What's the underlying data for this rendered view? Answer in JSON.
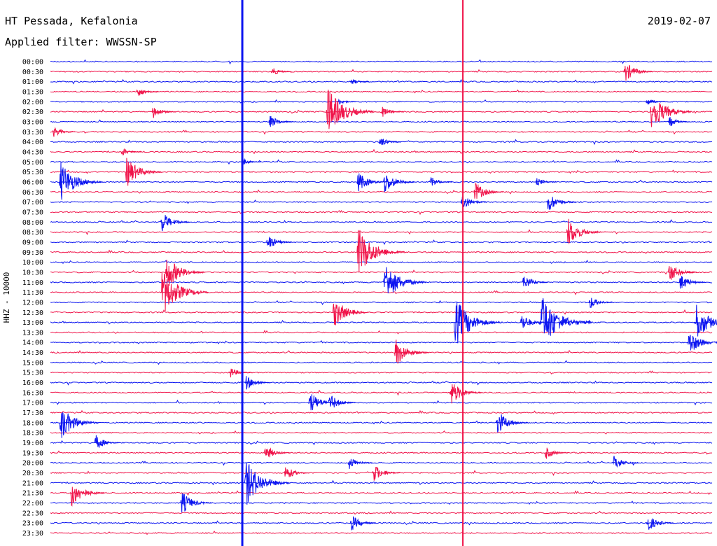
{
  "header": {
    "station": "HT Pessada, Kefalonia",
    "filter": "Applied filter: WWSSN-SP",
    "date": "2019-02-07",
    "channel": "HHZ - 10000"
  },
  "colors": {
    "odd_trace": "#0b14f0",
    "even_trace": "#f0144a",
    "marker_blue": "#0b14f0",
    "marker_red": "#f0144a"
  },
  "chart_data": {
    "type": "line",
    "title": "HT Pessada, Kefalonia",
    "subtitle": "Applied filter: WWSSN-SP",
    "ylabel": "HHZ - 10000",
    "xlabel": "",
    "row_labels": [
      "00:00",
      "00:30",
      "01:00",
      "01:30",
      "02:00",
      "02:30",
      "03:00",
      "03:30",
      "04:00",
      "04:30",
      "05:00",
      "05:30",
      "06:00",
      "06:30",
      "07:00",
      "07:30",
      "08:00",
      "08:30",
      "09:00",
      "09:30",
      "10:00",
      "10:30",
      "11:00",
      "11:30",
      "12:00",
      "12:30",
      "13:00",
      "13:30",
      "14:00",
      "14:30",
      "15:00",
      "15:30",
      "16:00",
      "16:30",
      "17:00",
      "17:30",
      "18:00",
      "18:30",
      "19:00",
      "19:30",
      "20:00",
      "20:30",
      "21:00",
      "21:30",
      "22:00",
      "22:30",
      "23:00",
      "23:30"
    ],
    "x_range_minutes": [
      0,
      30
    ],
    "series_colors": [
      "blue",
      "red"
    ],
    "events": [
      {
        "row": 1,
        "minute": 26.0,
        "amp": 18
      },
      {
        "row": 1,
        "minute": 10.0,
        "amp": 8
      },
      {
        "row": 2,
        "minute": 13.6,
        "amp": 6
      },
      {
        "row": 3,
        "minute": 3.9,
        "amp": 10
      },
      {
        "row": 4,
        "minute": 13.0,
        "amp": 6
      },
      {
        "row": 4,
        "minute": 27.0,
        "amp": 7
      },
      {
        "row": 5,
        "minute": 4.6,
        "amp": 12
      },
      {
        "row": 5,
        "minute": 12.5,
        "amp": 40
      },
      {
        "row": 5,
        "minute": 15.0,
        "amp": 10
      },
      {
        "row": 5,
        "minute": 27.2,
        "amp": 32
      },
      {
        "row": 6,
        "minute": 9.9,
        "amp": 12
      },
      {
        "row": 6,
        "minute": 28.0,
        "amp": 10
      },
      {
        "row": 7,
        "minute": 0.1,
        "amp": 10
      },
      {
        "row": 8,
        "minute": 14.9,
        "amp": 10
      },
      {
        "row": 9,
        "minute": 3.2,
        "amp": 8
      },
      {
        "row": 10,
        "minute": 8.7,
        "amp": 6
      },
      {
        "row": 11,
        "minute": 3.4,
        "amp": 26
      },
      {
        "row": 12,
        "minute": 0.4,
        "amp": 34
      },
      {
        "row": 12,
        "minute": 13.9,
        "amp": 18
      },
      {
        "row": 12,
        "minute": 15.1,
        "amp": 20
      },
      {
        "row": 12,
        "minute": 17.2,
        "amp": 10
      },
      {
        "row": 12,
        "minute": 22.0,
        "amp": 8
      },
      {
        "row": 13,
        "minute": 19.2,
        "amp": 18
      },
      {
        "row": 14,
        "minute": 18.6,
        "amp": 15
      },
      {
        "row": 14,
        "minute": 22.5,
        "amp": 18
      },
      {
        "row": 16,
        "minute": 5.0,
        "amp": 18
      },
      {
        "row": 17,
        "minute": 23.4,
        "amp": 25
      },
      {
        "row": 18,
        "minute": 9.8,
        "amp": 14
      },
      {
        "row": 19,
        "minute": 13.9,
        "amp": 40
      },
      {
        "row": 21,
        "minute": 5.2,
        "amp": 30
      },
      {
        "row": 21,
        "minute": 28.0,
        "amp": 18
      },
      {
        "row": 22,
        "minute": 15.1,
        "amp": 34
      },
      {
        "row": 22,
        "minute": 21.4,
        "amp": 14
      },
      {
        "row": 22,
        "minute": 28.5,
        "amp": 15
      },
      {
        "row": 23,
        "minute": 5.0,
        "amp": 40
      },
      {
        "row": 24,
        "minute": 24.4,
        "amp": 12
      },
      {
        "row": 25,
        "minute": 12.8,
        "amp": 26
      },
      {
        "row": 26,
        "minute": 18.3,
        "amp": 40
      },
      {
        "row": 26,
        "minute": 21.3,
        "amp": 16
      },
      {
        "row": 26,
        "minute": 22.2,
        "amp": 45
      },
      {
        "row": 26,
        "minute": 29.2,
        "amp": 32
      },
      {
        "row": 28,
        "minute": 28.9,
        "amp": 22
      },
      {
        "row": 29,
        "minute": 15.6,
        "amp": 24
      },
      {
        "row": 31,
        "minute": 8.1,
        "amp": 10
      },
      {
        "row": 32,
        "minute": 8.8,
        "amp": 14
      },
      {
        "row": 33,
        "minute": 18.1,
        "amp": 22
      },
      {
        "row": 34,
        "minute": 11.7,
        "amp": 20
      },
      {
        "row": 34,
        "minute": 12.6,
        "amp": 16
      },
      {
        "row": 36,
        "minute": 0.4,
        "amp": 30
      },
      {
        "row": 36,
        "minute": 20.2,
        "amp": 22
      },
      {
        "row": 38,
        "minute": 2.0,
        "amp": 14
      },
      {
        "row": 39,
        "minute": 9.7,
        "amp": 14
      },
      {
        "row": 39,
        "minute": 22.4,
        "amp": 12
      },
      {
        "row": 40,
        "minute": 13.5,
        "amp": 12
      },
      {
        "row": 40,
        "minute": 25.5,
        "amp": 14
      },
      {
        "row": 41,
        "minute": 10.6,
        "amp": 14
      },
      {
        "row": 41,
        "minute": 14.6,
        "amp": 16
      },
      {
        "row": 42,
        "minute": 8.8,
        "amp": 38
      },
      {
        "row": 43,
        "minute": 0.9,
        "amp": 24
      },
      {
        "row": 44,
        "minute": 5.9,
        "amp": 20
      },
      {
        "row": 46,
        "minute": 13.6,
        "amp": 14
      },
      {
        "row": 46,
        "minute": 27.0,
        "amp": 16
      }
    ],
    "vertical_markers": [
      {
        "minute": 8.7,
        "color": "blue"
      },
      {
        "minute": 18.7,
        "color": "red"
      }
    ],
    "grid": false,
    "legend": "none"
  }
}
